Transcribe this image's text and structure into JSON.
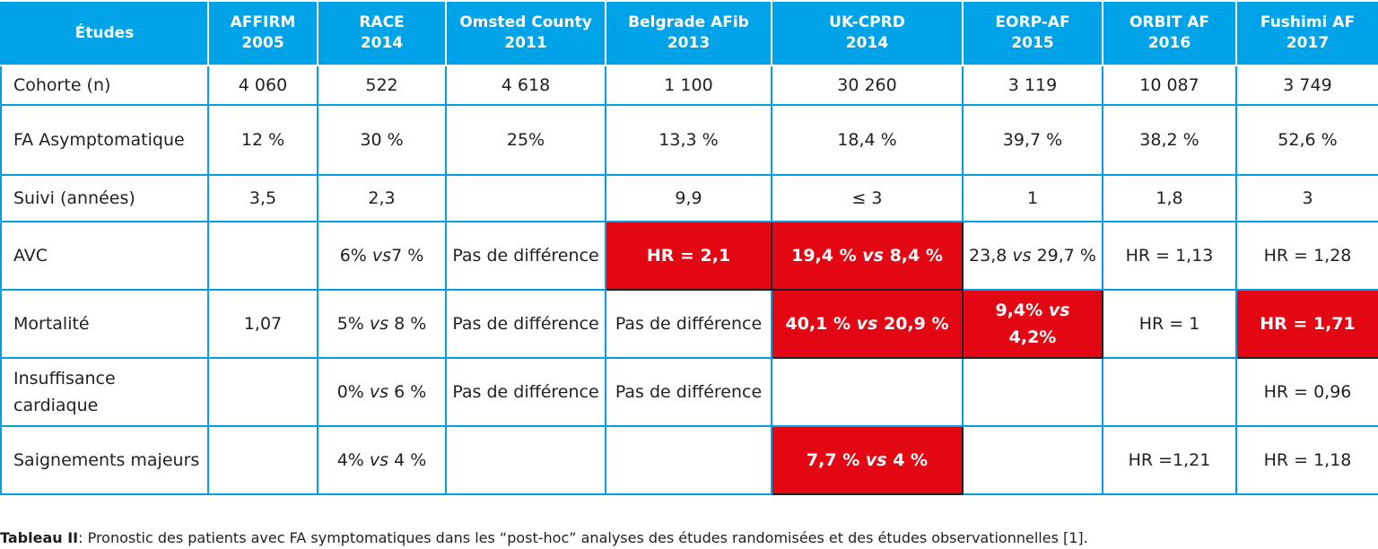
{
  "table": {
    "header": {
      "label": "Études",
      "columns": [
        {
          "name": "AFFIRM",
          "year": "2005"
        },
        {
          "name": "RACE",
          "year": "2014"
        },
        {
          "name": "Omsted County",
          "year": "2011"
        },
        {
          "name": "Belgrade AFib",
          "year": "2013"
        },
        {
          "name": "UK-CPRD",
          "year": "2014"
        },
        {
          "name": "EORP-AF",
          "year": "2015"
        },
        {
          "name": "ORBIT AF",
          "year": "2016"
        },
        {
          "name": "Fushimi AF",
          "year": "2017"
        }
      ]
    },
    "rows": [
      {
        "label": "Cohorte (n)",
        "cells": [
          {
            "text": "4 060"
          },
          {
            "text": "522"
          },
          {
            "text": "4 618"
          },
          {
            "text": "1 100"
          },
          {
            "text": "30 260"
          },
          {
            "text": "3 119"
          },
          {
            "text": "10 087"
          },
          {
            "text": "3 749"
          }
        ]
      },
      {
        "label": "FA Asymptomatique",
        "cells": [
          {
            "text": "12 %"
          },
          {
            "text": "30 %"
          },
          {
            "text": "25%"
          },
          {
            "text": "13,3 %"
          },
          {
            "text": "18,4 %"
          },
          {
            "text": "39,7 %"
          },
          {
            "text": "38,2 %"
          },
          {
            "text": "52,6 %"
          }
        ]
      },
      {
        "label": "Suivi (années)",
        "cells": [
          {
            "text": "3,5"
          },
          {
            "text": "2,3"
          },
          {
            "text": ""
          },
          {
            "text": "9,9"
          },
          {
            "text": "≤ 3"
          },
          {
            "text": "1"
          },
          {
            "text": "1,8"
          },
          {
            "text": "3"
          }
        ]
      },
      {
        "label": "AVC",
        "cells": [
          {
            "text": ""
          },
          {
            "a": "6%",
            "vs": "vs",
            "b": "7 %",
            "gap": ""
          },
          {
            "text": "Pas de différence"
          },
          {
            "text": "HR = 2,1",
            "highlight": true
          },
          {
            "a": "19,4 %",
            "vs": "vs",
            "b": "8,4 %",
            "gap": " ",
            "highlight": true
          },
          {
            "a": "23,8",
            "vs": "vs",
            "b": "29,7 %",
            "gap": " "
          },
          {
            "text": "HR = 1,13"
          },
          {
            "text": "HR = 1,28"
          }
        ]
      },
      {
        "label": "Mortalité",
        "cells": [
          {
            "text": "1,07"
          },
          {
            "a": "5%",
            "vs": "vs",
            "b": "8 %",
            "gap": " "
          },
          {
            "text": "Pas de différence"
          },
          {
            "text": "Pas de différence"
          },
          {
            "a": "40,1 %",
            "vs": "vs",
            "b": "20,9 %",
            "gap": " ",
            "highlight": true
          },
          {
            "a": "9,4%",
            "vs": "vs",
            "b": "4,2%",
            "gap": " ",
            "highlight": true
          },
          {
            "text": "HR = 1"
          },
          {
            "text": "HR = 1,71",
            "highlight": true
          }
        ]
      },
      {
        "label": "Insuffisance cardiaque",
        "cells": [
          {
            "text": ""
          },
          {
            "a": "0%",
            "vs": "vs",
            "b": "6 %",
            "gap": " "
          },
          {
            "text": "Pas de différence"
          },
          {
            "text": "Pas de différence"
          },
          {
            "text": ""
          },
          {
            "text": ""
          },
          {
            "text": ""
          },
          {
            "text": "HR = 0,96"
          }
        ]
      },
      {
        "label": "Saignements majeurs",
        "cells": [
          {
            "text": ""
          },
          {
            "a": "4%",
            "vs": "vs",
            "b": "4 %",
            "gap": " "
          },
          {
            "text": ""
          },
          {
            "text": ""
          },
          {
            "a": "7,7 %",
            "vs": "vs",
            "b": "4 %",
            "gap": " ",
            "highlight": true
          },
          {
            "text": ""
          },
          {
            "text": "HR =1,21"
          },
          {
            "text": "HR = 1,18"
          }
        ]
      }
    ]
  },
  "caption": {
    "label": "Tableau II",
    "text": ": Pronostic des patients avec FA symptomatiques dans les “post-hoc” analyses des études randomisées et des études observationnelles [1]."
  },
  "colors": {
    "header_bg": "#00a3e8",
    "border": "#00a0e3",
    "highlight_bg": "#e30613",
    "text": "#231f20"
  }
}
